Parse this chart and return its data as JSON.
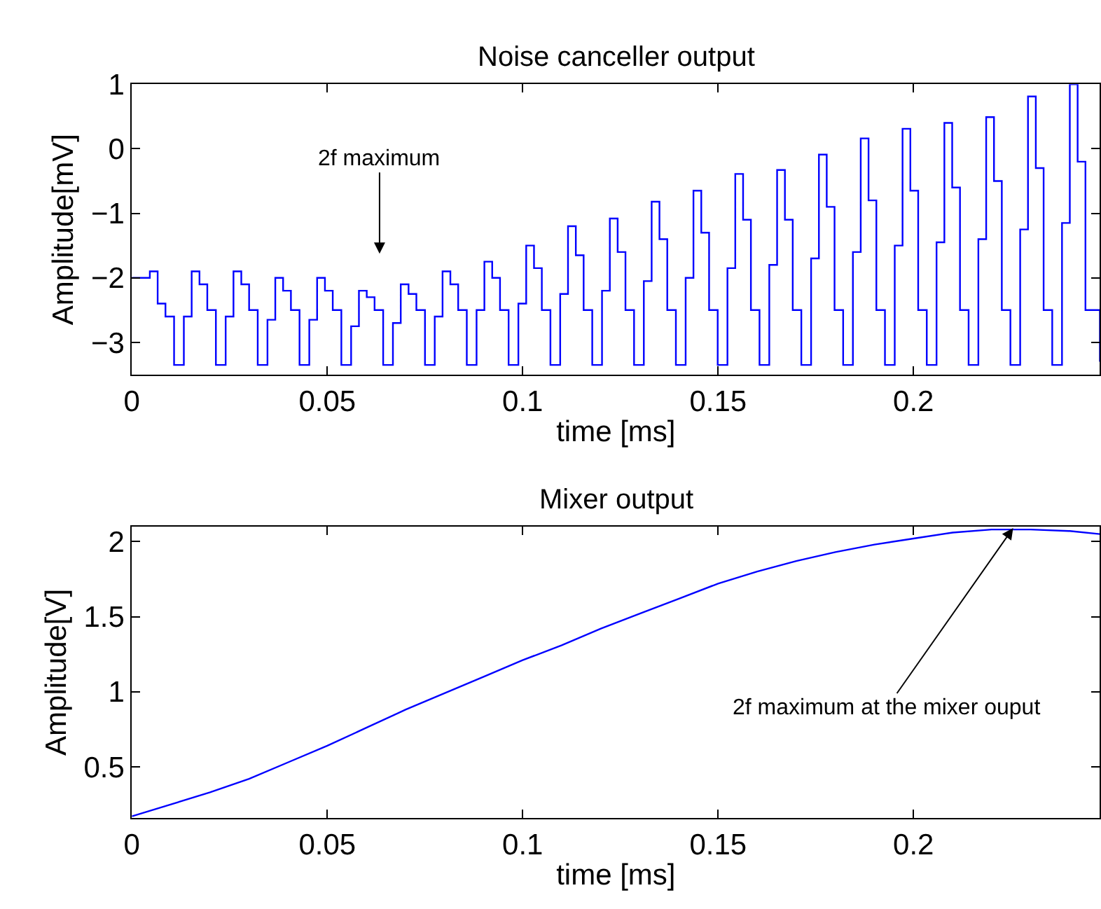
{
  "chart_data": [
    {
      "type": "step",
      "title": "Noise canceller output",
      "xlabel": "time [ms]",
      "ylabel": "Amplitude[mV]",
      "xlim": [
        0,
        0.2477
      ],
      "ylim": [
        -3.5,
        1
      ],
      "xticks": [
        0,
        0.05,
        0.1,
        0.15,
        0.2
      ],
      "yticks": [
        -3,
        -2,
        -1,
        0,
        1
      ],
      "series": [
        {
          "color": "#0000ff",
          "x": [
            0,
            0.0046,
            0.0066,
            0.0086,
            0.0108,
            0.0133,
            0.0153,
            0.0173,
            0.0193,
            0.0215,
            0.024,
            0.026,
            0.028,
            0.03,
            0.0322,
            0.0347,
            0.0367,
            0.0387,
            0.0407,
            0.0429,
            0.0454,
            0.0474,
            0.0494,
            0.0514,
            0.0536,
            0.0561,
            0.0581,
            0.0601,
            0.0621,
            0.0643,
            0.0668,
            0.0688,
            0.0708,
            0.0728,
            0.075,
            0.0775,
            0.0795,
            0.0815,
            0.0835,
            0.0857,
            0.0882,
            0.0902,
            0.0922,
            0.0942,
            0.0964,
            0.0989,
            0.1009,
            0.1029,
            0.1049,
            0.1071,
            0.1096,
            0.1116,
            0.1136,
            0.1156,
            0.1178,
            0.1203,
            0.1223,
            0.1243,
            0.1263,
            0.1285,
            0.131,
            0.133,
            0.135,
            0.137,
            0.1392,
            0.1417,
            0.1437,
            0.1457,
            0.1477,
            0.1499,
            0.1524,
            0.1544,
            0.1564,
            0.1584,
            0.1606,
            0.1631,
            0.1651,
            0.1671,
            0.1691,
            0.1713,
            0.1738,
            0.1758,
            0.1778,
            0.1798,
            0.182,
            0.1845,
            0.1865,
            0.1885,
            0.1905,
            0.1927,
            0.1952,
            0.1972,
            0.1992,
            0.2012,
            0.2034,
            0.2059,
            0.2079,
            0.2099,
            0.2119,
            0.2141,
            0.2166,
            0.2186,
            0.2206,
            0.2226,
            0.2248,
            0.2273,
            0.2293,
            0.2313,
            0.2333,
            0.2355,
            0.238,
            0.24,
            0.242,
            0.244,
            0.2477
          ],
          "values": [
            -2.0,
            -1.9,
            -2.4,
            -2.6,
            -3.35,
            -2.6,
            -1.9,
            -2.1,
            -2.5,
            -3.35,
            -2.6,
            -1.9,
            -2.1,
            -2.5,
            -3.35,
            -2.65,
            -2.0,
            -2.2,
            -2.5,
            -3.35,
            -2.65,
            -2.0,
            -2.2,
            -2.5,
            -3.35,
            -2.75,
            -2.2,
            -2.3,
            -2.5,
            -3.35,
            -2.7,
            -2.1,
            -2.25,
            -2.5,
            -3.35,
            -2.6,
            -1.9,
            -2.1,
            -2.5,
            -3.35,
            -2.5,
            -1.75,
            -2.0,
            -2.5,
            -3.35,
            -2.4,
            -1.5,
            -1.85,
            -2.5,
            -3.35,
            -2.25,
            -1.2,
            -1.65,
            -2.5,
            -3.35,
            -2.2,
            -1.08,
            -1.6,
            -2.5,
            -3.35,
            -2.05,
            -0.82,
            -1.4,
            -2.5,
            -3.35,
            -2.0,
            -0.65,
            -1.3,
            -2.5,
            -3.35,
            -1.85,
            -0.39,
            -1.1,
            -2.5,
            -3.35,
            -1.8,
            -0.33,
            -1.1,
            -2.5,
            -3.35,
            -1.7,
            -0.09,
            -0.9,
            -2.5,
            -3.35,
            -1.6,
            0.16,
            -0.8,
            -2.5,
            -3.35,
            -1.5,
            0.31,
            -0.65,
            -2.5,
            -3.35,
            -1.45,
            0.4,
            -0.6,
            -2.5,
            -3.35,
            -1.4,
            0.49,
            -0.5,
            -2.5,
            -3.35,
            -1.25,
            0.81,
            -0.3,
            -2.5,
            -3.35,
            -1.15,
            1.0,
            -0.2,
            -2.5,
            -3.3
          ]
        }
      ],
      "annotations": [
        "2f maximum"
      ]
    },
    {
      "type": "line",
      "title": "Mixer output",
      "xlabel": "time [ms]",
      "ylabel": "Amplitude[V]",
      "xlim": [
        0,
        0.2477
      ],
      "ylim": [
        0.16,
        2.1
      ],
      "xticks": [
        0,
        0.05,
        0.1,
        0.15,
        0.2
      ],
      "yticks": [
        0.5,
        1,
        1.5,
        2
      ],
      "series": [
        {
          "color": "#0000ff",
          "x": [
            0,
            0.01,
            0.02,
            0.03,
            0.04,
            0.05,
            0.06,
            0.07,
            0.08,
            0.09,
            0.1,
            0.11,
            0.12,
            0.13,
            0.14,
            0.15,
            0.16,
            0.17,
            0.18,
            0.19,
            0.2,
            0.21,
            0.22,
            0.23,
            0.24,
            0.2477
          ],
          "values": [
            0.17,
            0.25,
            0.33,
            0.42,
            0.53,
            0.64,
            0.76,
            0.88,
            0.99,
            1.1,
            1.21,
            1.31,
            1.42,
            1.52,
            1.62,
            1.72,
            1.8,
            1.87,
            1.93,
            1.98,
            2.02,
            2.06,
            2.08,
            2.08,
            2.07,
            2.05
          ]
        }
      ],
      "annotations": [
        {
          "text": "2f maximum at the mixer ouput",
          "x": 0.2255,
          "y": 2.09
        }
      ]
    }
  ]
}
